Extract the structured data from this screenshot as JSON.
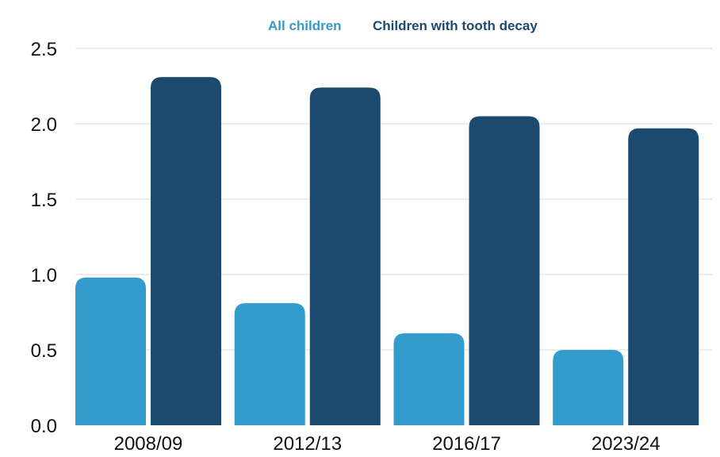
{
  "chart_data": {
    "type": "bar",
    "title": "",
    "xlabel": "",
    "ylabel": "",
    "categories": [
      "2008/09",
      "2012/13",
      "2016/17",
      "2023/24"
    ],
    "series": [
      {
        "name": "All children",
        "color": "#349bcd",
        "values": [
          0.98,
          0.81,
          0.61,
          0.5
        ]
      },
      {
        "name": "Children with tooth decay",
        "color": "#1c4a6e",
        "values": [
          2.31,
          2.24,
          2.05,
          1.97
        ]
      }
    ],
    "ylim": [
      0,
      2.5
    ],
    "yticks": [
      "0.0",
      "0.5",
      "1.0",
      "1.5",
      "2.0",
      "2.5"
    ],
    "grid": true,
    "legend_position": "top-center"
  }
}
